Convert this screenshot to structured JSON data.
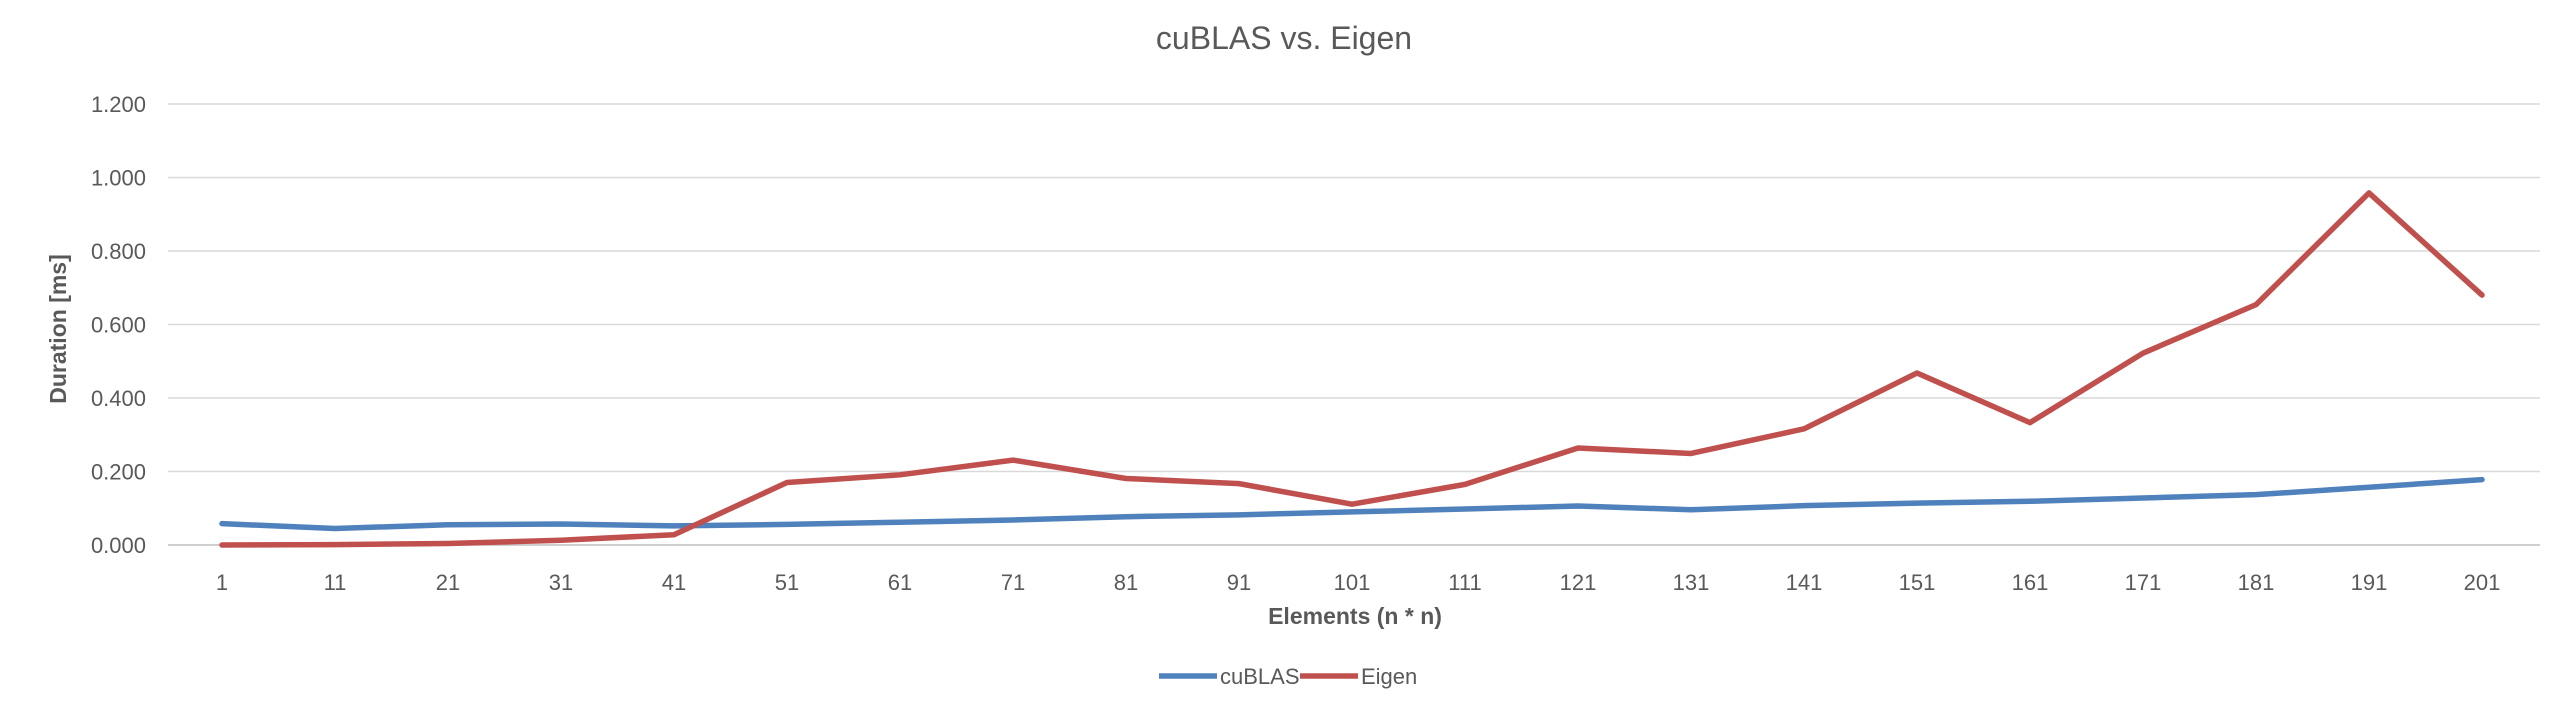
{
  "chart_data": {
    "type": "line",
    "title": "cuBLAS vs. Eigen",
    "xlabel": "Elements (n * n)",
    "ylabel": "Duration [ms]",
    "categories": [
      "1",
      "11",
      "21",
      "31",
      "41",
      "51",
      "61",
      "71",
      "81",
      "91",
      "101",
      "111",
      "121",
      "131",
      "141",
      "151",
      "161",
      "171",
      "181",
      "191",
      "201"
    ],
    "y_ticks": [
      "0.000",
      "0.200",
      "0.400",
      "0.600",
      "0.800",
      "1.000",
      "1.200"
    ],
    "ylim": [
      0,
      1.2
    ],
    "grid": true,
    "legend_position": "bottom",
    "series": [
      {
        "name": "cuBLAS",
        "color": "#4f81bd",
        "values": [
          0.058,
          0.045,
          0.055,
          0.057,
          0.052,
          0.056,
          0.062,
          0.068,
          0.077,
          0.082,
          0.09,
          0.098,
          0.106,
          0.096,
          0.107,
          0.114,
          0.119,
          0.128,
          0.137,
          0.157,
          0.178
        ]
      },
      {
        "name": "Eigen",
        "color": "#c0504d",
        "values": [
          0.0,
          0.001,
          0.004,
          0.013,
          0.028,
          0.17,
          0.191,
          0.231,
          0.181,
          0.167,
          0.111,
          0.165,
          0.264,
          0.249,
          0.316,
          0.468,
          0.333,
          0.522,
          0.654,
          0.958,
          0.68
        ]
      }
    ]
  }
}
